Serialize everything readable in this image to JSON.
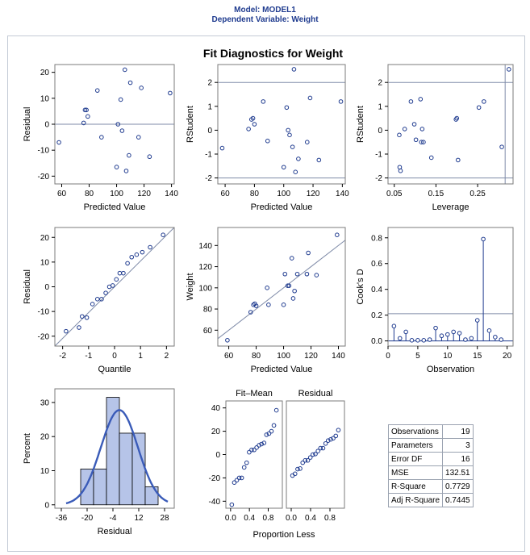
{
  "header": {
    "model": "Model: MODEL1",
    "dependent": "Dependent Variable: Weight"
  },
  "colors": {
    "title_blue": "#1f3b8f",
    "marker": "#1f3b8f",
    "refline": "#7f8ba8",
    "bar_fill": "#b6c4e8",
    "density": "#3a5bb8",
    "frame": "#c3cad5",
    "plot_border": "#7b7b7b"
  },
  "chart_data": [
    {
      "type": "scatter",
      "title": "Fit Diagnostics for Weight",
      "xlabel": "Predicted Value",
      "ylabel": "Residual",
      "xlim": [
        55,
        142
      ],
      "ylim": [
        -23,
        23
      ],
      "xticks": [
        {
          "v": 60,
          "t": "60"
        },
        {
          "v": 80,
          "t": "80"
        },
        {
          "v": 100,
          "t": "100"
        },
        {
          "v": 120,
          "t": "120"
        },
        {
          "v": 140,
          "t": "140"
        }
      ],
      "yticks": [
        {
          "v": -20,
          "t": "-20"
        },
        {
          "v": -10,
          "t": "-10"
        },
        {
          "v": 0,
          "t": "0"
        },
        {
          "v": 10,
          "t": "10"
        },
        {
          "v": 20,
          "t": "20"
        }
      ],
      "hlines": [
        0
      ],
      "vlines": [],
      "x": [
        58,
        76,
        77,
        78,
        79,
        86,
        89,
        100,
        101,
        103,
        104,
        106,
        107,
        109,
        110,
        116,
        118,
        124,
        139
      ],
      "y": [
        -7,
        0.5,
        5.5,
        5.5,
        3,
        13,
        -5,
        -16.5,
        0,
        9.5,
        -2.5,
        21,
        -18,
        -12,
        16,
        -5,
        14,
        -12.5,
        12
      ]
    },
    {
      "type": "scatter",
      "xlabel": "Predicted Value",
      "ylabel": "RStudent",
      "xlim": [
        55,
        142
      ],
      "ylim": [
        -2.25,
        2.75
      ],
      "xticks": [
        {
          "v": 60,
          "t": "60"
        },
        {
          "v": 80,
          "t": "80"
        },
        {
          "v": 100,
          "t": "100"
        },
        {
          "v": 120,
          "t": "120"
        },
        {
          "v": 140,
          "t": "140"
        }
      ],
      "yticks": [
        {
          "v": -2,
          "t": "-2"
        },
        {
          "v": -1,
          "t": "-1"
        },
        {
          "v": 0,
          "t": "0"
        },
        {
          "v": 1,
          "t": "1"
        },
        {
          "v": 2,
          "t": "2"
        }
      ],
      "hlines": [
        -2,
        2
      ],
      "vlines": [],
      "x": [
        58,
        76,
        78,
        79,
        80,
        86,
        89,
        100,
        102,
        103,
        104,
        106,
        107,
        108,
        110,
        116,
        118,
        124,
        139
      ],
      "y": [
        -0.75,
        0.05,
        0.45,
        0.5,
        0.25,
        1.2,
        -0.45,
        -1.55,
        0.95,
        0,
        -0.2,
        -0.7,
        2.55,
        -1.75,
        -1.2,
        -0.5,
        1.35,
        -1.25,
        1.2
      ]
    },
    {
      "type": "scatter",
      "xlabel": "Leverage",
      "ylabel": "RStudent",
      "xlim": [
        0.035,
        0.335
      ],
      "ylim": [
        -2.25,
        2.75
      ],
      "xticks": [
        {
          "v": 0.05,
          "t": "0.05"
        },
        {
          "v": 0.15,
          "t": "0.15"
        },
        {
          "v": 0.25,
          "t": "0.25"
        }
      ],
      "yticks": [
        {
          "v": -2,
          "t": "-2"
        },
        {
          "v": -1,
          "t": "-1"
        },
        {
          "v": 0,
          "t": "0"
        },
        {
          "v": 1,
          "t": "1"
        },
        {
          "v": 2,
          "t": "2"
        }
      ],
      "hlines": [
        -2,
        2
      ],
      "vlines": [
        0.316
      ],
      "x": [
        0.062,
        0.063,
        0.065,
        0.075,
        0.09,
        0.098,
        0.102,
        0.113,
        0.117,
        0.12,
        0.139,
        0.198,
        0.2,
        0.203,
        0.253,
        0.265,
        0.308,
        0.325,
        0.115
      ],
      "y": [
        -0.2,
        -1.55,
        -1.7,
        0.05,
        1.2,
        0.25,
        -0.4,
        1.3,
        0.05,
        -0.5,
        -1.15,
        0.45,
        0.5,
        -1.25,
        0.95,
        1.2,
        -0.7,
        2.55,
        -0.5
      ]
    },
    {
      "type": "scatter",
      "xlabel": "Quantile",
      "ylabel": "Residual",
      "xlim": [
        -2.3,
        2.3
      ],
      "ylim": [
        -24,
        24
      ],
      "xticks": [
        {
          "v": -2,
          "t": "-2"
        },
        {
          "v": -1,
          "t": "-1"
        },
        {
          "v": 0,
          "t": "0"
        },
        {
          "v": 1,
          "t": "1"
        },
        {
          "v": 2,
          "t": "2"
        }
      ],
      "yticks": [
        {
          "v": -20,
          "t": "-20"
        },
        {
          "v": -10,
          "t": "-10"
        },
        {
          "v": 0,
          "t": "0"
        },
        {
          "v": 10,
          "t": "10"
        },
        {
          "v": 20,
          "t": "20"
        }
      ],
      "diag": [
        [
          -2.3,
          -24
        ],
        [
          2.3,
          24
        ]
      ],
      "x": [
        -1.87,
        -1.37,
        -1.07,
        -0.85,
        -0.66,
        -0.5,
        -0.34,
        -0.2,
        -0.07,
        0.07,
        0.2,
        0.34,
        0.5,
        0.66,
        0.85,
        1.07,
        1.37,
        1.87,
        -1.25
      ],
      "y": [
        -18,
        -16.5,
        -12.5,
        -7,
        -5,
        -5,
        -2.5,
        0,
        0.5,
        3,
        5.5,
        5.5,
        9.5,
        12,
        13,
        14,
        16,
        21,
        -12
      ]
    },
    {
      "type": "scatter",
      "xlabel": "Predicted Value",
      "ylabel": "Weight",
      "xlim": [
        52,
        145
      ],
      "ylim": [
        45,
        157
      ],
      "xticks": [
        {
          "v": 60,
          "t": "60"
        },
        {
          "v": 80,
          "t": "80"
        },
        {
          "v": 100,
          "t": "100"
        },
        {
          "v": 120,
          "t": "120"
        },
        {
          "v": 140,
          "t": "140"
        }
      ],
      "yticks": [
        {
          "v": 60,
          "t": "60"
        },
        {
          "v": 80,
          "t": "80"
        },
        {
          "v": 100,
          "t": "100"
        },
        {
          "v": 120,
          "t": "120"
        },
        {
          "v": 140,
          "t": "140"
        }
      ],
      "diag": [
        [
          52,
          52
        ],
        [
          145,
          145
        ]
      ],
      "x": [
        59,
        76,
        78,
        79,
        80,
        88,
        89,
        100,
        101,
        103,
        104,
        106,
        107,
        108,
        110,
        117,
        118,
        124,
        139
      ],
      "y": [
        50.5,
        77,
        84,
        85,
        83,
        100,
        84,
        84,
        113,
        102,
        102,
        128,
        90,
        97,
        113,
        113,
        133,
        112,
        150
      ]
    },
    {
      "type": "needle",
      "xlabel": "Observation",
      "ylabel": "Cook's D",
      "xlim": [
        0,
        21
      ],
      "ylim": [
        -0.04,
        0.88
      ],
      "xticks": [
        {
          "v": 0,
          "t": "0"
        },
        {
          "v": 5,
          "t": "5"
        },
        {
          "v": 10,
          "t": "10"
        },
        {
          "v": 15,
          "t": "15"
        },
        {
          "v": 20,
          "t": "20"
        }
      ],
      "yticks": [
        {
          "v": 0,
          "t": "0.0"
        },
        {
          "v": 0.2,
          "t": "0.2"
        },
        {
          "v": 0.4,
          "t": "0.4"
        },
        {
          "v": 0.6,
          "t": "0.6"
        },
        {
          "v": 0.8,
          "t": "0.8"
        }
      ],
      "hlines": [
        0.211
      ],
      "x": [
        1,
        2,
        3,
        4,
        5,
        6,
        7,
        8,
        9,
        10,
        11,
        12,
        13,
        14,
        15,
        16,
        17,
        18,
        19
      ],
      "y": [
        0.115,
        0.02,
        0.07,
        0.005,
        0.005,
        0.005,
        0.01,
        0.1,
        0.04,
        0.05,
        0.07,
        0.06,
        0.01,
        0.02,
        0.16,
        0.79,
        0.08,
        0.03,
        0.01
      ]
    },
    {
      "type": "histogram",
      "xlabel": "Residual",
      "ylabel": "Percent",
      "xlim": [
        -40,
        34
      ],
      "ylim": [
        -1,
        34
      ],
      "xticks": [
        {
          "v": -36,
          "t": "-36"
        },
        {
          "v": -20,
          "t": "-20"
        },
        {
          "v": -4,
          "t": "-4"
        },
        {
          "v": 12,
          "t": "12"
        },
        {
          "v": 28,
          "t": "28"
        }
      ],
      "yticks": [
        {
          "v": 0,
          "t": "0"
        },
        {
          "v": 10,
          "t": "10"
        },
        {
          "v": 20,
          "t": "20"
        },
        {
          "v": 30,
          "t": "30"
        }
      ],
      "bins": [
        [
          -24,
          -16
        ],
        [
          -16,
          -8
        ],
        [
          -8,
          0
        ],
        [
          0,
          8
        ],
        [
          8,
          16
        ],
        [
          16,
          24
        ]
      ],
      "values": [
        10.5,
        10.5,
        31.5,
        21,
        21,
        5.3
      ],
      "density_mean": 0,
      "density_sd": 11.5
    },
    {
      "type": "rf_spread",
      "titles": [
        "Fit–Mean",
        "Residual"
      ],
      "xlabel": "Proportion Less",
      "xlim": [
        -0.1,
        1.1
      ],
      "ylim": [
        -46,
        46
      ],
      "xticks": [
        {
          "v": 0,
          "t": "0.0"
        },
        {
          "v": 0.4,
          "t": "0.4"
        },
        {
          "v": 0.8,
          "t": "0.8"
        }
      ],
      "yticks": [
        {
          "v": -40,
          "t": "-40"
        },
        {
          "v": -20,
          "t": "-20"
        },
        {
          "v": 0,
          "t": "0"
        },
        {
          "v": 20,
          "t": "20"
        },
        {
          "v": 40,
          "t": "40"
        }
      ],
      "p": [
        0.026,
        0.079,
        0.132,
        0.184,
        0.237,
        0.289,
        0.342,
        0.395,
        0.447,
        0.5,
        0.553,
        0.605,
        0.658,
        0.711,
        0.763,
        0.816,
        0.868,
        0.921,
        0.974
      ],
      "fit_mean": [
        -43,
        -24,
        -22,
        -20,
        -20,
        -11,
        -7,
        2,
        4,
        4,
        6,
        8,
        9,
        10,
        17,
        18,
        20,
        25,
        38
      ],
      "residual": [
        -18,
        -16.5,
        -12.5,
        -12,
        -7,
        -5,
        -5,
        -2.5,
        0,
        0.5,
        3,
        5.5,
        5.5,
        9.5,
        12,
        13,
        14,
        16,
        21
      ]
    }
  ],
  "stats": [
    {
      "label": "Observations",
      "value": "19"
    },
    {
      "label": "Parameters",
      "value": "3"
    },
    {
      "label": "Error DF",
      "value": "16"
    },
    {
      "label": "MSE",
      "value": "132.51"
    },
    {
      "label": "R-Square",
      "value": "0.7729"
    },
    {
      "label": "Adj R-Square",
      "value": "0.7445"
    }
  ]
}
